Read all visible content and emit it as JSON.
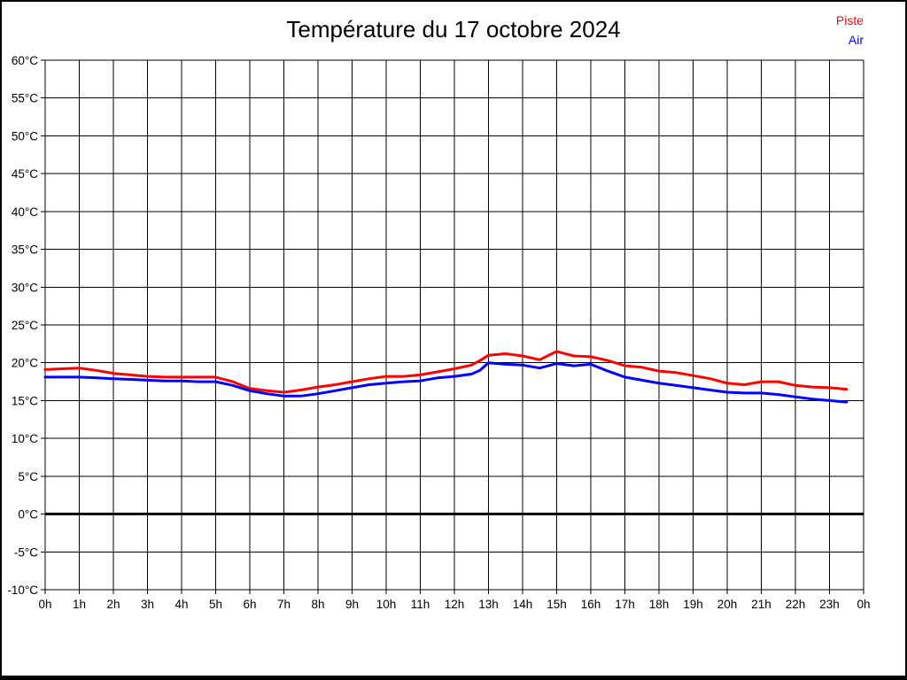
{
  "title": "Température du 17 octobre 2024",
  "legend": {
    "items": [
      {
        "label": "Piste",
        "color": "#ff0000"
      },
      {
        "label": "Air",
        "color": "#0000ff"
      }
    ],
    "position": "top-right"
  },
  "chart_data": {
    "type": "line",
    "title": "Température du 17 octobre 2024",
    "xlabel": "",
    "ylabel": "°C",
    "xlim": [
      0,
      24
    ],
    "ylim": [
      -10,
      60
    ],
    "y_tick_step": 5,
    "grid": true,
    "zero_line_bold": true,
    "x_tick_labels": [
      "0h",
      "1h",
      "2h",
      "3h",
      "4h",
      "5h",
      "6h",
      "7h",
      "8h",
      "9h",
      "10h",
      "11h",
      "12h",
      "13h",
      "14h",
      "15h",
      "16h",
      "17h",
      "18h",
      "19h",
      "20h",
      "21h",
      "22h",
      "23h",
      "0h"
    ],
    "y_tick_labels": [
      "60°C",
      "55°C",
      "50°C",
      "45°C",
      "40°C",
      "35°C",
      "30°C",
      "25°C",
      "20°C",
      "15°C",
      "10°C",
      "5°C",
      "0°C",
      "-5°C",
      "-10°C"
    ],
    "x": [
      0,
      0.5,
      1,
      1.5,
      2,
      2.5,
      3,
      3.5,
      4,
      4.5,
      5,
      5.5,
      6,
      6.5,
      7,
      7.5,
      8,
      8.5,
      9,
      9.5,
      10,
      10.5,
      11,
      11.5,
      12,
      12.5,
      12.75,
      13,
      13.5,
      14,
      14.5,
      15,
      15.5,
      16,
      16.5,
      17,
      17.5,
      18,
      18.5,
      19,
      19.5,
      20,
      20.5,
      21,
      21.5,
      22,
      22.5,
      23,
      23.5
    ],
    "series": [
      {
        "name": "Piste",
        "color": "#ff0000",
        "values": [
          19.1,
          19.2,
          19.3,
          19.0,
          18.6,
          18.4,
          18.2,
          18.1,
          18.1,
          18.1,
          18.1,
          17.5,
          16.6,
          16.3,
          16.1,
          16.4,
          16.8,
          17.1,
          17.5,
          17.9,
          18.2,
          18.2,
          18.4,
          18.8,
          19.2,
          19.7,
          20.3,
          21.0,
          21.2,
          20.9,
          20.4,
          21.5,
          20.9,
          20.8,
          20.3,
          19.6,
          19.4,
          18.9,
          18.7,
          18.3,
          17.9,
          17.3,
          17.1,
          17.5,
          17.5,
          17.0,
          16.8,
          16.7,
          16.5
        ]
      },
      {
        "name": "Air",
        "color": "#0000ff",
        "values": [
          18.1,
          18.1,
          18.1,
          18.0,
          17.9,
          17.8,
          17.7,
          17.6,
          17.6,
          17.5,
          17.5,
          17.0,
          16.3,
          15.9,
          15.6,
          15.6,
          15.9,
          16.3,
          16.7,
          17.1,
          17.3,
          17.5,
          17.6,
          18.0,
          18.2,
          18.5,
          19.0,
          20.0,
          19.8,
          19.7,
          19.3,
          19.9,
          19.6,
          19.8,
          18.9,
          18.1,
          17.7,
          17.3,
          17.0,
          16.7,
          16.4,
          16.1,
          16.0,
          16.0,
          15.8,
          15.5,
          15.2,
          15.0,
          14.8
        ]
      }
    ]
  }
}
